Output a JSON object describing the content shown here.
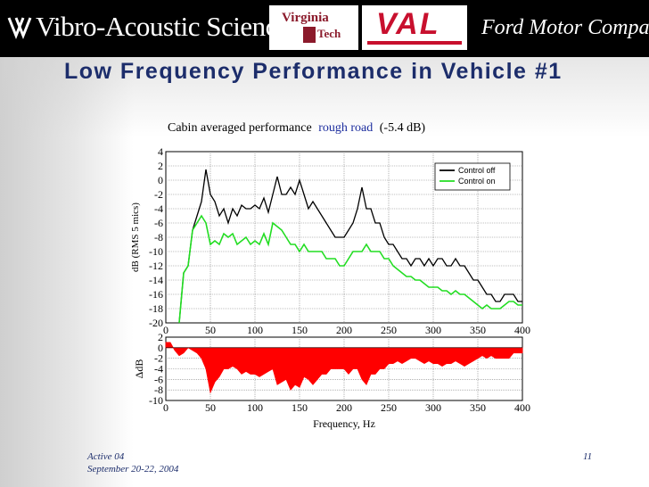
{
  "header": {
    "vas_logo": "Vibro-Acoustic Sciences",
    "vt_logo_line1": "Virginia",
    "vt_logo_line2": "Tech",
    "val_logo": "VAL",
    "ford_logo": "Ford Motor Company"
  },
  "slide": {
    "title": "Low Frequency Performance in Vehicle #1"
  },
  "footer": {
    "event": "Active 04",
    "date": "September 20-22, 2004",
    "page": "11"
  },
  "colors": {
    "control_off": "#000000",
    "control_on": "#22dd22",
    "difference_fill": "#ff0000",
    "caption_highlight": "#1c2d9e",
    "title": "#1c2d6b"
  },
  "chart_data": [
    {
      "type": "line",
      "title_prefix": "Cabin averaged performance",
      "title_highlight": "rough road",
      "title_suffix": "(-5.4 dB)",
      "xlabel": "",
      "ylabel": "dB (RMS 5 mics)",
      "xlim": [
        0,
        400
      ],
      "ylim": [
        -20,
        4
      ],
      "xticks": [
        "0",
        "50",
        "100",
        "150",
        "200",
        "250",
        "300",
        "350",
        "400"
      ],
      "yticks": [
        "4",
        "2",
        "0",
        "-2",
        "-4",
        "-6",
        "-8",
        "-10",
        "-12",
        "-14",
        "-16",
        "-18",
        "-20"
      ],
      "grid": true,
      "legend_position": "top-right",
      "series": [
        {
          "name": "Control off",
          "x": [
            15,
            20,
            25,
            30,
            35,
            40,
            45,
            50,
            55,
            60,
            65,
            70,
            75,
            80,
            85,
            90,
            95,
            100,
            105,
            110,
            115,
            120,
            125,
            130,
            135,
            140,
            145,
            150,
            155,
            160,
            165,
            170,
            175,
            180,
            185,
            190,
            195,
            200,
            205,
            210,
            215,
            220,
            225,
            230,
            235,
            240,
            245,
            250,
            255,
            260,
            265,
            270,
            275,
            280,
            285,
            290,
            295,
            300,
            305,
            310,
            315,
            320,
            325,
            330,
            335,
            340,
            345,
            350,
            355,
            360,
            365,
            370,
            375,
            380,
            385,
            390,
            395,
            400
          ],
          "y": [
            -20,
            -13,
            -12,
            -7,
            -5,
            -3,
            1.5,
            -2,
            -3,
            -5,
            -4,
            -6,
            -4,
            -5,
            -3.5,
            -4,
            -4,
            -3.5,
            -4,
            -2.5,
            -4.5,
            -2,
            0.5,
            -2,
            -2,
            -1,
            -2,
            0,
            -2,
            -4,
            -3,
            -4,
            -5,
            -6,
            -7,
            -8,
            -8,
            -8,
            -7,
            -6,
            -4,
            -1,
            -4,
            -4,
            -6,
            -6,
            -8,
            -9,
            -9,
            -10,
            -11,
            -11,
            -12,
            -11,
            -11,
            -12,
            -11,
            -12,
            -11,
            -11,
            -12,
            -12,
            -11,
            -12,
            -12,
            -13,
            -14,
            -14,
            -15,
            -16,
            -16,
            -17,
            -17,
            -16,
            -16,
            -16,
            -17,
            -17
          ]
        },
        {
          "name": "Control on",
          "x": [
            15,
            20,
            25,
            30,
            35,
            40,
            45,
            50,
            55,
            60,
            65,
            70,
            75,
            80,
            85,
            90,
            95,
            100,
            105,
            110,
            115,
            120,
            125,
            130,
            135,
            140,
            145,
            150,
            155,
            160,
            165,
            170,
            175,
            180,
            185,
            190,
            195,
            200,
            205,
            210,
            215,
            220,
            225,
            230,
            235,
            240,
            245,
            250,
            255,
            260,
            265,
            270,
            275,
            280,
            285,
            290,
            295,
            300,
            305,
            310,
            315,
            320,
            325,
            330,
            335,
            340,
            345,
            350,
            355,
            360,
            365,
            370,
            375,
            380,
            385,
            390,
            395,
            400
          ],
          "y": [
            -20,
            -13,
            -12,
            -7,
            -6,
            -5,
            -6,
            -9,
            -8.5,
            -9,
            -7.5,
            -8,
            -7.5,
            -9,
            -8.5,
            -8,
            -9,
            -8.5,
            -9,
            -7.5,
            -9,
            -6,
            -6.5,
            -7,
            -8,
            -9,
            -9,
            -10,
            -9,
            -10,
            -10,
            -10,
            -10,
            -11,
            -11,
            -11,
            -12,
            -12,
            -11,
            -10,
            -10,
            -10,
            -9,
            -10,
            -10,
            -10,
            -11,
            -11,
            -12,
            -12.5,
            -13,
            -13.5,
            -13.5,
            -14,
            -14,
            -14.5,
            -15,
            -15,
            -15,
            -15.5,
            -15.5,
            -16,
            -15.5,
            -16,
            -16,
            -16.5,
            -17,
            -17.5,
            -18,
            -17.5,
            -18,
            -18,
            -18,
            -17.5,
            -17,
            -17,
            -17.5,
            -17.5
          ]
        }
      ]
    },
    {
      "type": "area",
      "xlabel": "Frequency, Hz",
      "ylabel": "ΔdB",
      "xlim": [
        0,
        400
      ],
      "ylim": [
        -10,
        2
      ],
      "xticks": [
        "0",
        "50",
        "100",
        "150",
        "200",
        "250",
        "300",
        "350",
        "400"
      ],
      "yticks": [
        "2",
        "0",
        "-2",
        "-4",
        "-6",
        "-8",
        "-10"
      ],
      "grid": true,
      "series": [
        {
          "name": "",
          "x": [
            0,
            5,
            10,
            15,
            20,
            25,
            30,
            35,
            40,
            45,
            50,
            55,
            60,
            65,
            70,
            75,
            80,
            85,
            90,
            95,
            100,
            105,
            110,
            115,
            120,
            125,
            130,
            135,
            140,
            145,
            150,
            155,
            160,
            165,
            170,
            175,
            180,
            185,
            190,
            195,
            200,
            205,
            210,
            215,
            220,
            225,
            230,
            235,
            240,
            245,
            250,
            255,
            260,
            265,
            270,
            275,
            280,
            285,
            290,
            295,
            300,
            305,
            310,
            315,
            320,
            325,
            330,
            335,
            340,
            345,
            350,
            355,
            360,
            365,
            370,
            375,
            380,
            385,
            390,
            395,
            400
          ],
          "y": [
            1,
            1,
            -0.5,
            -1.5,
            -1,
            0,
            -0.5,
            -1,
            -2,
            -4,
            -8.5,
            -6.5,
            -5.5,
            -4,
            -4,
            -3.5,
            -4,
            -5,
            -4.5,
            -5,
            -5,
            -5.5,
            -5,
            -4.5,
            -4,
            -7,
            -6.5,
            -6,
            -8,
            -7,
            -7.5,
            -5.5,
            -6,
            -7,
            -6,
            -5,
            -5,
            -4,
            -4,
            -4,
            -4,
            -5,
            -4,
            -4,
            -6,
            -7,
            -5,
            -5,
            -4,
            -4,
            -3,
            -3,
            -2.5,
            -3,
            -2.5,
            -2,
            -2,
            -2.5,
            -3,
            -2.5,
            -3,
            -3,
            -3.5,
            -3,
            -3,
            -2.5,
            -3,
            -3.5,
            -3,
            -2.5,
            -2,
            -1.5,
            -2,
            -1.5,
            -2,
            -2,
            -2,
            -2,
            -1,
            -1,
            -1
          ]
        }
      ]
    }
  ]
}
